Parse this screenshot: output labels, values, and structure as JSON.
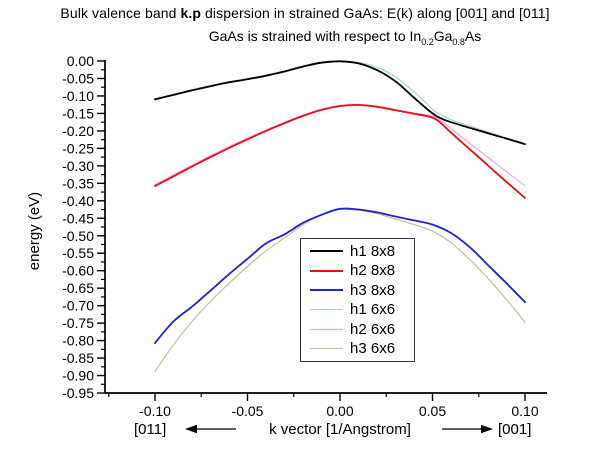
{
  "title": {
    "prefix": "Bulk valence band ",
    "bold": "k.p",
    "suffix": " dispersion in strained GaAs: E(k) along [001] and [011]"
  },
  "subtitle": {
    "prefix": "GaAs is strained with respect to In",
    "sub1": "0.2",
    "mid": "Ga",
    "sub2": "0.8",
    "suffix": "As"
  },
  "chart_data": {
    "type": "line",
    "xlabel": "k vector [1/Angstrom]",
    "ylabel": "energy (eV)",
    "direction_left": "[011]",
    "direction_right": "[001]",
    "xlim": [
      -0.127,
      0.112
    ],
    "ylim": [
      -0.95,
      0.0
    ],
    "grid": false,
    "legend_position": "center-right",
    "xticks": {
      "labels": [
        "-0.10",
        "-0.05",
        "0.00",
        "0.05",
        "0.10"
      ],
      "minor": [
        -0.125,
        -0.075,
        -0.025,
        0.025,
        0.075
      ]
    },
    "yticks": {
      "labels": [
        "0.00",
        "-0.05",
        "-0.10",
        "-0.15",
        "-0.20",
        "-0.25",
        "-0.30",
        "-0.35",
        "-0.40",
        "-0.45",
        "-0.50",
        "-0.55",
        "-0.60",
        "-0.65",
        "-0.70",
        "-0.75",
        "-0.80",
        "-0.85",
        "-0.90",
        "-0.95"
      ]
    },
    "series": [
      {
        "name": "h1 8x8",
        "color": "#000000",
        "width": 1.8,
        "points": [
          [
            -0.1,
            -0.11
          ],
          [
            -0.09,
            -0.097
          ],
          [
            -0.08,
            -0.084
          ],
          [
            -0.07,
            -0.072
          ],
          [
            -0.06,
            -0.061
          ],
          [
            -0.05,
            -0.052
          ],
          [
            -0.04,
            -0.042
          ],
          [
            -0.03,
            -0.03
          ],
          [
            -0.02,
            -0.016
          ],
          [
            -0.01,
            -0.005
          ],
          [
            0.0,
            -0.001
          ],
          [
            0.01,
            -0.007
          ],
          [
            0.02,
            -0.026
          ],
          [
            0.03,
            -0.058
          ],
          [
            0.04,
            -0.105
          ],
          [
            0.05,
            -0.15
          ],
          [
            0.055,
            -0.165
          ],
          [
            0.06,
            -0.175
          ],
          [
            0.07,
            -0.191
          ],
          [
            0.08,
            -0.207
          ],
          [
            0.09,
            -0.222
          ],
          [
            0.1,
            -0.238
          ]
        ]
      },
      {
        "name": "h2 8x8",
        "color": "#e31212",
        "width": 1.8,
        "points": [
          [
            -0.1,
            -0.358
          ],
          [
            -0.09,
            -0.33
          ],
          [
            -0.08,
            -0.302
          ],
          [
            -0.07,
            -0.275
          ],
          [
            -0.06,
            -0.249
          ],
          [
            -0.05,
            -0.224
          ],
          [
            -0.04,
            -0.2
          ],
          [
            -0.03,
            -0.178
          ],
          [
            -0.02,
            -0.157
          ],
          [
            -0.01,
            -0.14
          ],
          [
            0.0,
            -0.129
          ],
          [
            0.01,
            -0.126
          ],
          [
            0.02,
            -0.131
          ],
          [
            0.03,
            -0.141
          ],
          [
            0.04,
            -0.151
          ],
          [
            0.05,
            -0.162
          ],
          [
            0.055,
            -0.18
          ],
          [
            0.06,
            -0.205
          ],
          [
            0.07,
            -0.252
          ],
          [
            0.08,
            -0.299
          ],
          [
            0.09,
            -0.346
          ],
          [
            0.1,
            -0.392
          ]
        ]
      },
      {
        "name": "h3 8x8",
        "color": "#2222cf",
        "width": 1.8,
        "points": [
          [
            -0.1,
            -0.807
          ],
          [
            -0.09,
            -0.745
          ],
          [
            -0.08,
            -0.703
          ],
          [
            -0.07,
            -0.657
          ],
          [
            -0.06,
            -0.61
          ],
          [
            -0.05,
            -0.566
          ],
          [
            -0.04,
            -0.522
          ],
          [
            -0.03,
            -0.496
          ],
          [
            -0.02,
            -0.463
          ],
          [
            -0.01,
            -0.44
          ],
          [
            0.0,
            -0.423
          ],
          [
            0.01,
            -0.425
          ],
          [
            0.02,
            -0.433
          ],
          [
            0.03,
            -0.445
          ],
          [
            0.04,
            -0.456
          ],
          [
            0.05,
            -0.468
          ],
          [
            0.06,
            -0.492
          ],
          [
            0.07,
            -0.532
          ],
          [
            0.08,
            -0.584
          ],
          [
            0.09,
            -0.636
          ],
          [
            0.1,
            -0.69
          ]
        ]
      },
      {
        "name": "h1 6x6",
        "color": "#a6d4cb",
        "width": 1.2,
        "points": [
          [
            -0.1,
            -0.108
          ],
          [
            -0.09,
            -0.095
          ],
          [
            -0.08,
            -0.082
          ],
          [
            -0.07,
            -0.07
          ],
          [
            -0.06,
            -0.059
          ],
          [
            -0.05,
            -0.05
          ],
          [
            -0.04,
            -0.04
          ],
          [
            -0.03,
            -0.028
          ],
          [
            -0.02,
            -0.014
          ],
          [
            -0.01,
            -0.003
          ],
          [
            0.0,
            0.0
          ],
          [
            0.01,
            -0.004
          ],
          [
            0.02,
            -0.018
          ],
          [
            0.03,
            -0.045
          ],
          [
            0.04,
            -0.088
          ],
          [
            0.05,
            -0.138
          ],
          [
            0.055,
            -0.155
          ],
          [
            0.06,
            -0.168
          ],
          [
            0.07,
            -0.186
          ],
          [
            0.08,
            -0.203
          ],
          [
            0.09,
            -0.22
          ],
          [
            0.1,
            -0.236
          ]
        ]
      },
      {
        "name": "h2 6x6",
        "color": "#f3a3f0",
        "width": 1.2,
        "points": [
          [
            -0.1,
            -0.354
          ],
          [
            -0.09,
            -0.326
          ],
          [
            -0.08,
            -0.298
          ],
          [
            -0.07,
            -0.271
          ],
          [
            -0.06,
            -0.245
          ],
          [
            -0.05,
            -0.221
          ],
          [
            -0.04,
            -0.197
          ],
          [
            -0.03,
            -0.175
          ],
          [
            -0.02,
            -0.155
          ],
          [
            -0.01,
            -0.138
          ],
          [
            0.0,
            -0.127
          ],
          [
            0.01,
            -0.124
          ],
          [
            0.02,
            -0.129
          ],
          [
            0.03,
            -0.139
          ],
          [
            0.04,
            -0.149
          ],
          [
            0.05,
            -0.157
          ],
          [
            0.055,
            -0.172
          ],
          [
            0.06,
            -0.193
          ],
          [
            0.07,
            -0.235
          ],
          [
            0.08,
            -0.276
          ],
          [
            0.09,
            -0.317
          ],
          [
            0.1,
            -0.357
          ]
        ]
      },
      {
        "name": "h3 6x6",
        "color": "#c4bf8a",
        "width": 1.2,
        "points": [
          [
            -0.1,
            -0.888
          ],
          [
            -0.09,
            -0.812
          ],
          [
            -0.08,
            -0.745
          ],
          [
            -0.07,
            -0.688
          ],
          [
            -0.06,
            -0.636
          ],
          [
            -0.05,
            -0.588
          ],
          [
            -0.04,
            -0.543
          ],
          [
            -0.03,
            -0.506
          ],
          [
            -0.02,
            -0.468
          ],
          [
            -0.01,
            -0.441
          ],
          [
            0.0,
            -0.424
          ],
          [
            0.01,
            -0.427
          ],
          [
            0.02,
            -0.437
          ],
          [
            0.03,
            -0.452
          ],
          [
            0.04,
            -0.468
          ],
          [
            0.05,
            -0.487
          ],
          [
            0.06,
            -0.52
          ],
          [
            0.07,
            -0.567
          ],
          [
            0.08,
            -0.622
          ],
          [
            0.09,
            -0.683
          ],
          [
            0.1,
            -0.747
          ]
        ]
      }
    ]
  }
}
